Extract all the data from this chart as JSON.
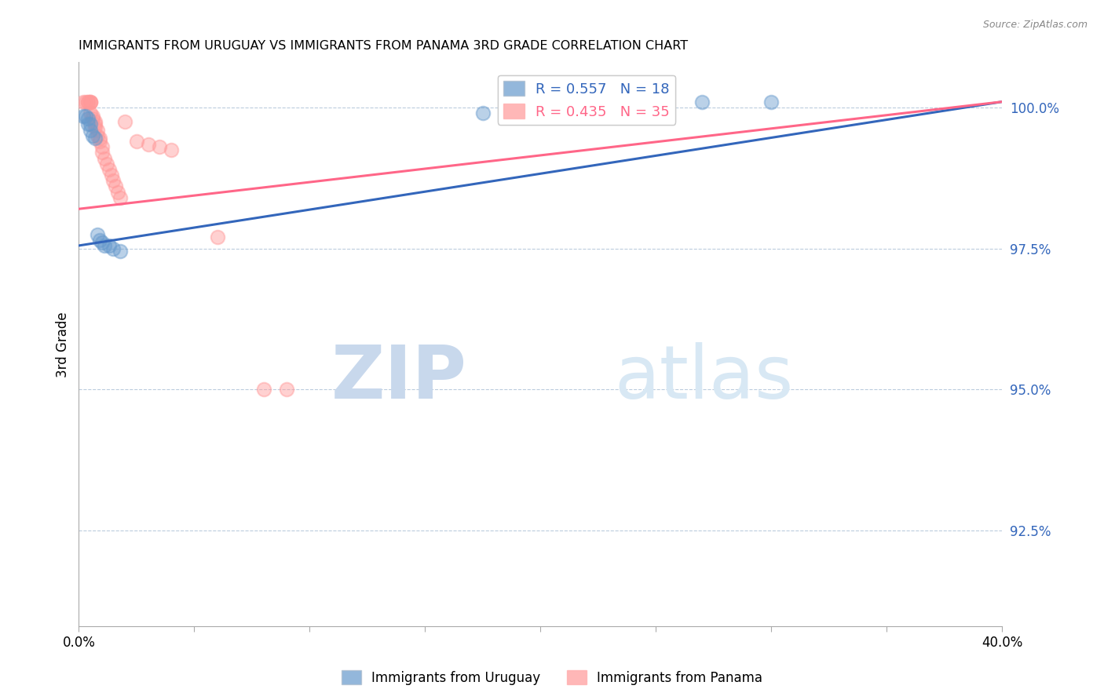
{
  "title": "IMMIGRANTS FROM URUGUAY VS IMMIGRANTS FROM PANAMA 3RD GRADE CORRELATION CHART",
  "source": "Source: ZipAtlas.com",
  "ylabel": "3rd Grade",
  "xlim": [
    0.0,
    0.4
  ],
  "ylim": [
    0.908,
    1.008
  ],
  "xticks": [
    0.0,
    0.05,
    0.1,
    0.15,
    0.2,
    0.25,
    0.3,
    0.35,
    0.4
  ],
  "yticks": [
    0.925,
    0.95,
    0.975,
    1.0
  ],
  "ytick_labels": [
    "92.5%",
    "95.0%",
    "97.5%",
    "100.0%"
  ],
  "xtick_labels": [
    "0.0%",
    "",
    "",
    "",
    "",
    "",
    "",
    "",
    "40.0%"
  ],
  "legend_label_blue": "R = 0.557   N = 18",
  "legend_label_pink": "R = 0.435   N = 35",
  "legend_bottom_blue": "Immigrants from Uruguay",
  "legend_bottom_pink": "Immigrants from Panama",
  "blue_color": "#6699CC",
  "pink_color": "#FF9999",
  "blue_line_color": "#3366BB",
  "pink_line_color": "#FF6688",
  "watermark_zip": "ZIP",
  "watermark_atlas": "atlas",
  "uruguay_x": [
    0.002,
    0.003,
    0.004,
    0.004,
    0.005,
    0.005,
    0.006,
    0.007,
    0.008,
    0.009,
    0.01,
    0.011,
    0.013,
    0.015,
    0.018,
    0.175,
    0.27,
    0.3
  ],
  "uruguay_y": [
    0.9985,
    0.9985,
    0.998,
    0.997,
    0.997,
    0.996,
    0.995,
    0.9945,
    0.9775,
    0.9765,
    0.976,
    0.9755,
    0.9755,
    0.975,
    0.9745,
    0.999,
    1.001,
    1.001
  ],
  "panama_x": [
    0.002,
    0.003,
    0.004,
    0.004,
    0.005,
    0.005,
    0.005,
    0.005,
    0.006,
    0.006,
    0.007,
    0.007,
    0.007,
    0.008,
    0.008,
    0.009,
    0.009,
    0.01,
    0.01,
    0.011,
    0.012,
    0.013,
    0.014,
    0.015,
    0.016,
    0.017,
    0.018,
    0.02,
    0.025,
    0.03,
    0.035,
    0.04,
    0.06,
    0.08,
    0.09
  ],
  "panama_y": [
    1.001,
    1.001,
    1.001,
    1.001,
    1.001,
    1.001,
    1.001,
    0.999,
    0.9985,
    0.998,
    0.9975,
    0.997,
    0.9965,
    0.996,
    0.995,
    0.9945,
    0.994,
    0.993,
    0.992,
    0.991,
    0.99,
    0.989,
    0.988,
    0.987,
    0.986,
    0.985,
    0.984,
    0.9975,
    0.994,
    0.9935,
    0.993,
    0.9925,
    0.977,
    0.95,
    0.95
  ],
  "blue_trendline_x0": 0.0,
  "blue_trendline_y0": 0.9755,
  "blue_trendline_x1": 0.4,
  "blue_trendline_y1": 1.001,
  "pink_trendline_x0": 0.0,
  "pink_trendline_y0": 0.982,
  "pink_trendline_x1": 0.4,
  "pink_trendline_y1": 1.001
}
